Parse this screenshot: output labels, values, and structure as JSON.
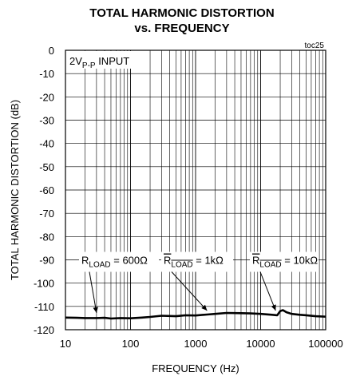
{
  "chart_data": {
    "type": "line",
    "title_line1": "TOTAL HARMONIC DISTORTION",
    "title_line2": "vs. FREQUENCY",
    "tag": "toc25",
    "xlabel": "FREQUENCY (Hz)",
    "ylabel": "TOTAL HARMONIC DISTORTION (dB)",
    "x_scale": "log",
    "xlim": [
      10,
      100000
    ],
    "ylim": [
      -120,
      0
    ],
    "x_ticks": [
      {
        "value": 10,
        "label": "10"
      },
      {
        "value": 100,
        "label": "100"
      },
      {
        "value": 1000,
        "label": "1000"
      },
      {
        "value": 10000,
        "label": "10000"
      },
      {
        "value": 100000,
        "label": "100000"
      }
    ],
    "y_ticks": [
      {
        "value": 0,
        "label": "0"
      },
      {
        "value": -10,
        "label": "-10"
      },
      {
        "value": -20,
        "label": "-20"
      },
      {
        "value": -30,
        "label": "-30"
      },
      {
        "value": -40,
        "label": "-40"
      },
      {
        "value": -50,
        "label": "-50"
      },
      {
        "value": -60,
        "label": "-60"
      },
      {
        "value": -70,
        "label": "-70"
      },
      {
        "value": -80,
        "label": "-80"
      },
      {
        "value": -90,
        "label": "-90"
      },
      {
        "value": -100,
        "label": "-100"
      },
      {
        "value": -110,
        "label": "-110"
      },
      {
        "value": -120,
        "label": "-120"
      }
    ],
    "grid": true,
    "input_label": {
      "main": "2V",
      "sub": "P-P",
      "suffix": " INPUT"
    },
    "annotations": [
      {
        "main": "R",
        "sub": "LOAD",
        "value": " = 600Ω",
        "arrow_x": 30,
        "arrow_y": -114.5
      },
      {
        "main": "R",
        "sub": "LOAD",
        "value": " = 1kΩ",
        "arrow_x": 1500,
        "arrow_y": -113.5
      },
      {
        "main": "R",
        "sub": "LOAD",
        "value": " = 10kΩ",
        "arrow_x": 17000,
        "arrow_y": -113.5
      }
    ],
    "series": [
      {
        "x": [
          10,
          15,
          20,
          30,
          40,
          50,
          70,
          100,
          150,
          200,
          300,
          500,
          700,
          1000,
          1500,
          2000,
          3000,
          5000,
          7000,
          10000,
          15000,
          18000,
          20000,
          22000,
          25000,
          30000,
          40000,
          50000,
          70000,
          100000
        ],
        "y": [
          -114.8,
          -114.9,
          -115.0,
          -115.0,
          -114.9,
          -115.2,
          -115.0,
          -115.1,
          -114.8,
          -114.5,
          -114.0,
          -114.2,
          -113.8,
          -113.9,
          -113.5,
          -113.2,
          -112.8,
          -112.9,
          -113.0,
          -113.2,
          -113.6,
          -113.8,
          -112.0,
          -111.6,
          -112.5,
          -113.2,
          -113.6,
          -113.8,
          -114.2,
          -114.4
        ]
      }
    ]
  }
}
